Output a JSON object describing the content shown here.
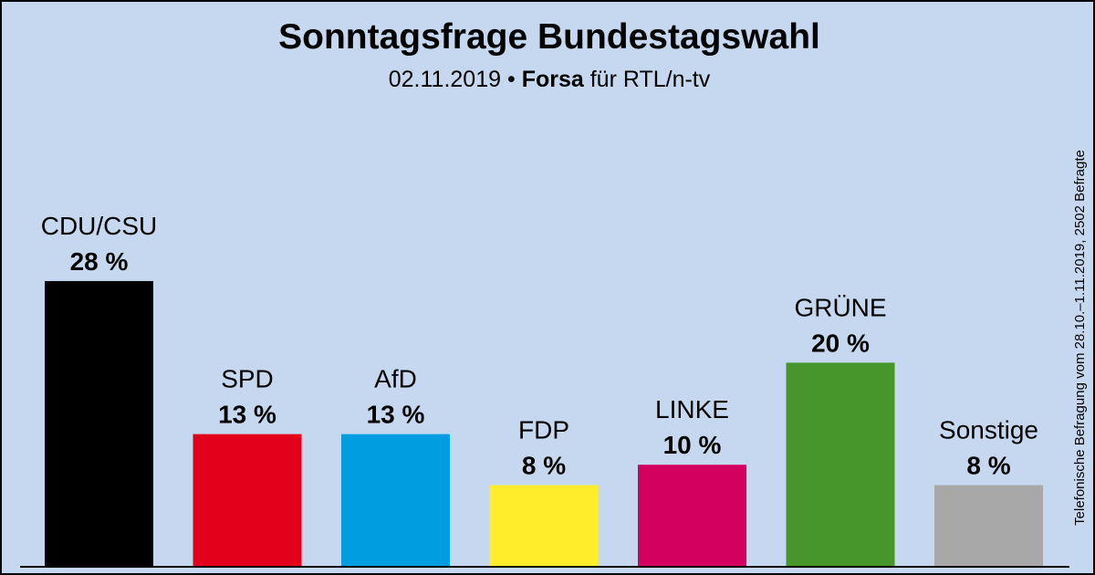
{
  "chart_data": {
    "type": "bar",
    "title": "Sonntagsfrage Bundestagswahl",
    "subtitle": {
      "date": "02.11.2019",
      "separator": " • ",
      "institute": "Forsa",
      "client": " für RTL/n-tv"
    },
    "side_note": "Telefonische Befragung vom 28.10.–1.11.2019, 2502 Befragte",
    "categories": [
      "CDU/CSU",
      "SPD",
      "AfD",
      "FDP",
      "LINKE",
      "GRÜNE",
      "Sonstige"
    ],
    "values": [
      28,
      13,
      13,
      8,
      10,
      20,
      8
    ],
    "value_labels": [
      "28 %",
      "13 %",
      "13 %",
      "8 %",
      "10 %",
      "20 %",
      "8 %"
    ],
    "colors": [
      "#000000",
      "#e3001b",
      "#009ee0",
      "#ffed2c",
      "#d4005f",
      "#46962b",
      "#a8a8a8"
    ],
    "unit": "%",
    "ylim": [
      0,
      28
    ],
    "xlabel": "",
    "ylabel": ""
  }
}
